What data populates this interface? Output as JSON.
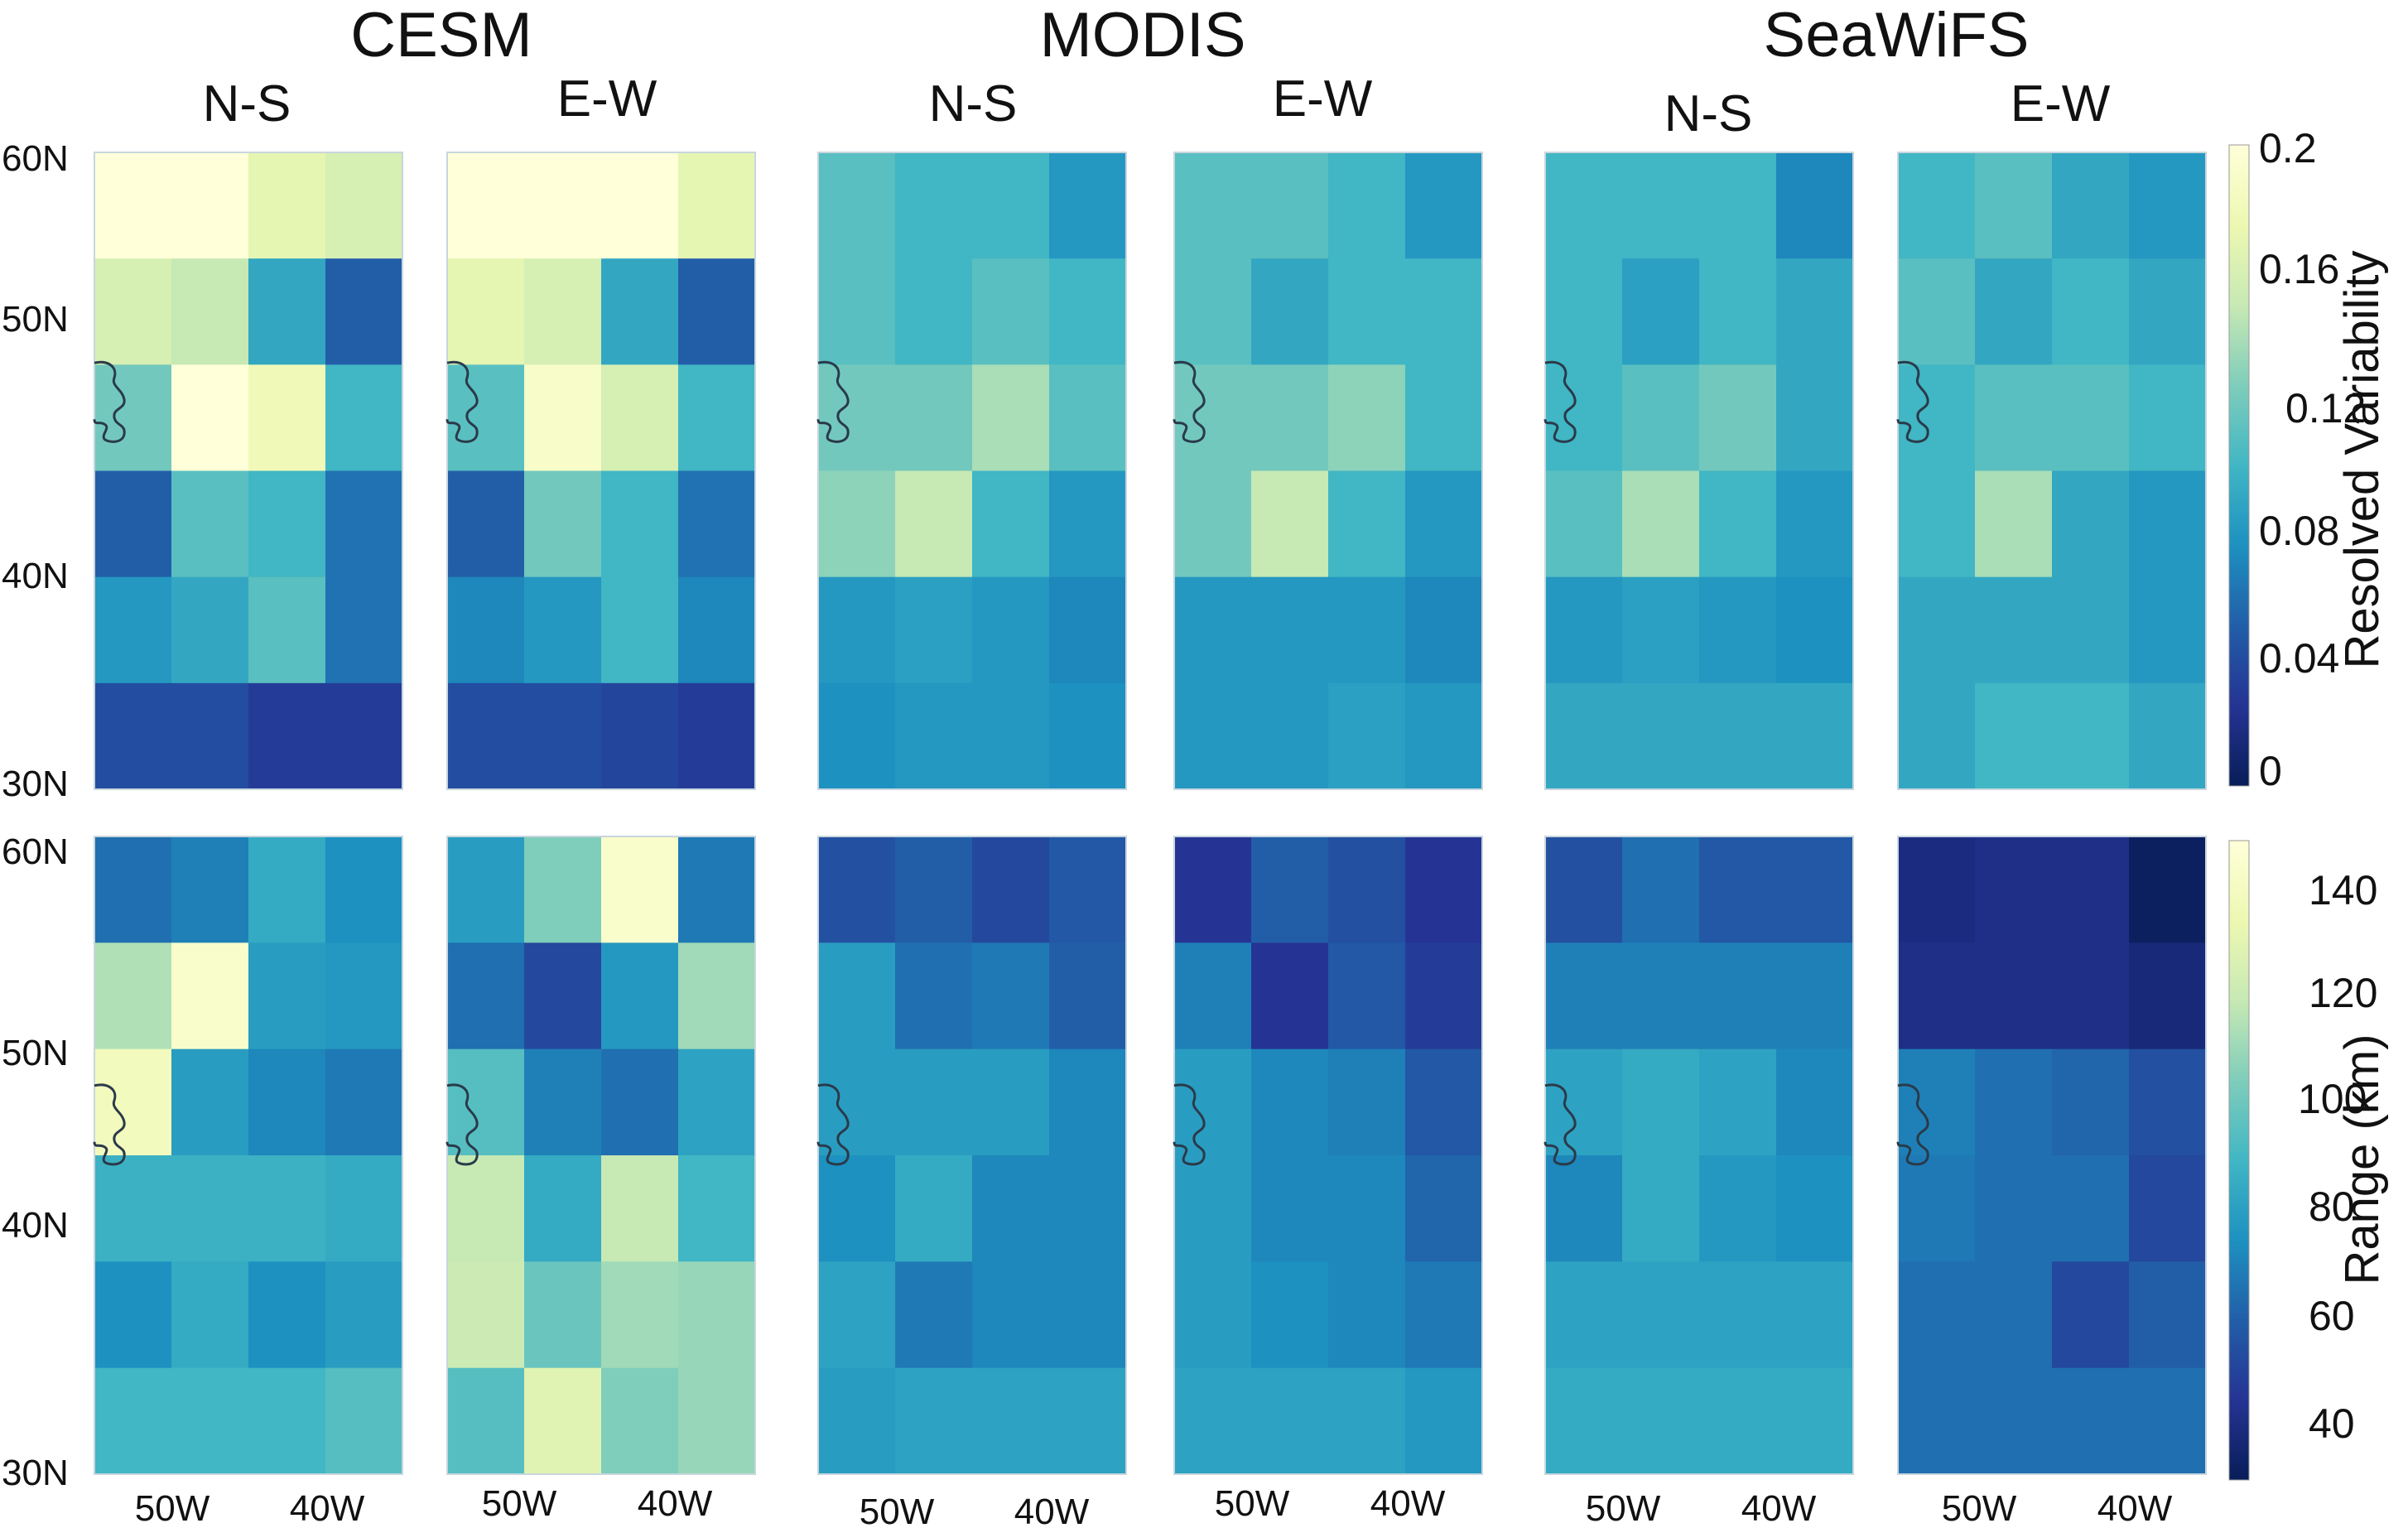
{
  "groups": [
    "CESM",
    "MODIS",
    "SeaWiFS"
  ],
  "subplot_titles": [
    "N-S",
    "E-W"
  ],
  "lat_ticks": [
    "60N",
    "50N",
    "40N",
    "30N"
  ],
  "lon_ticks": [
    "50W",
    "40W"
  ],
  "colorbars": [
    {
      "label": "Resolved Variability",
      "ticks": [
        "0.2",
        "0.16",
        "0.12",
        "0.08",
        "0.04",
        "0"
      ],
      "range": [
        0,
        0.2
      ]
    },
    {
      "label": "Range (km)",
      "ticks": [
        "140",
        "120",
        "100",
        "80",
        "60",
        "40"
      ],
      "range": [
        30,
        150
      ]
    }
  ],
  "chart_data": {
    "type": "heatmap",
    "description_rows": "6 latitude bands from north (60N-55N) to south (35N-30N); 4 longitude columns west to east (55W-35W)",
    "lat_range": [
      30,
      60
    ],
    "lon_range": [
      -55,
      -35
    ],
    "colormap": "YlGnBu",
    "rows": [
      {
        "variable": "Resolved Variability",
        "vmin": 0,
        "vmax": 0.2,
        "panels": [
          {
            "group": "CESM",
            "direction": "N-S",
            "grid": [
              [
                0.2,
                0.2,
                0.17,
                0.16
              ],
              [
                0.16,
                0.15,
                0.09,
                0.05
              ],
              [
                0.12,
                0.2,
                0.18,
                0.1
              ],
              [
                0.05,
                0.11,
                0.1,
                0.06
              ],
              [
                0.08,
                0.09,
                0.11,
                0.06
              ],
              [
                0.04,
                0.04,
                0.03,
                0.03
              ]
            ]
          },
          {
            "group": "CESM",
            "direction": "E-W",
            "grid": [
              [
                0.2,
                0.2,
                0.2,
                0.17
              ],
              [
                0.17,
                0.16,
                0.09,
                0.05
              ],
              [
                0.11,
                0.19,
                0.16,
                0.1
              ],
              [
                0.05,
                0.12,
                0.1,
                0.06
              ],
              [
                0.07,
                0.08,
                0.1,
                0.07
              ],
              [
                0.04,
                0.04,
                0.035,
                0.03
              ]
            ]
          },
          {
            "group": "MODIS",
            "direction": "N-S",
            "grid": [
              [
                0.11,
                0.1,
                0.1,
                0.08
              ],
              [
                0.11,
                0.1,
                0.11,
                0.1
              ],
              [
                0.12,
                0.12,
                0.14,
                0.11
              ],
              [
                0.13,
                0.15,
                0.1,
                0.08
              ],
              [
                0.08,
                0.085,
                0.08,
                0.07
              ],
              [
                0.075,
                0.08,
                0.08,
                0.075
              ]
            ]
          },
          {
            "group": "MODIS",
            "direction": "E-W",
            "grid": [
              [
                0.11,
                0.11,
                0.1,
                0.08
              ],
              [
                0.11,
                0.09,
                0.1,
                0.1
              ],
              [
                0.12,
                0.12,
                0.13,
                0.1
              ],
              [
                0.12,
                0.15,
                0.1,
                0.08
              ],
              [
                0.08,
                0.08,
                0.08,
                0.07
              ],
              [
                0.08,
                0.08,
                0.085,
                0.08
              ]
            ]
          },
          {
            "group": "SeaWiFS",
            "direction": "N-S",
            "grid": [
              [
                0.1,
                0.1,
                0.1,
                0.07
              ],
              [
                0.1,
                0.085,
                0.1,
                0.09
              ],
              [
                0.1,
                0.11,
                0.12,
                0.09
              ],
              [
                0.11,
                0.14,
                0.1,
                0.08
              ],
              [
                0.08,
                0.085,
                0.08,
                0.075
              ],
              [
                0.09,
                0.09,
                0.09,
                0.09
              ]
            ]
          },
          {
            "group": "SeaWiFS",
            "direction": "E-W",
            "grid": [
              [
                0.1,
                0.11,
                0.09,
                0.08
              ],
              [
                0.11,
                0.09,
                0.1,
                0.09
              ],
              [
                0.1,
                0.11,
                0.11,
                0.1
              ],
              [
                0.1,
                0.14,
                0.09,
                0.08
              ],
              [
                0.09,
                0.09,
                0.09,
                0.08
              ],
              [
                0.09,
                0.1,
                0.1,
                0.09
              ]
            ]
          }
        ]
      },
      {
        "variable": "Range (km)",
        "vmin": 30,
        "vmax": 150,
        "panels": [
          {
            "group": "CESM",
            "direction": "N-S",
            "grid": [
              [
                65,
                70,
                85,
                75
              ],
              [
                115,
                145,
                80,
                78
              ],
              [
                140,
                80,
                72,
                68
              ],
              [
                88,
                88,
                88,
                85
              ],
              [
                75,
                85,
                75,
                80
              ],
              [
                90,
                90,
                90,
                95
              ]
            ]
          },
          {
            "group": "CESM",
            "direction": "E-W",
            "grid": [
              [
                80,
                105,
                145,
                68
              ],
              [
                65,
                52,
                78,
                112
              ],
              [
                95,
                70,
                65,
                82
              ],
              [
                120,
                85,
                120,
                90
              ],
              [
                122,
                100,
                112,
                110
              ],
              [
                95,
                130,
                105,
                110
              ]
            ]
          },
          {
            "group": "MODIS",
            "direction": "N-S",
            "grid": [
              [
                55,
                60,
                52,
                58
              ],
              [
                80,
                65,
                68,
                60
              ],
              [
                80,
                80,
                80,
                72
              ],
              [
                75,
                85,
                72,
                72
              ],
              [
                82,
                68,
                72,
                72
              ],
              [
                80,
                82,
                82,
                82
              ]
            ]
          },
          {
            "group": "MODIS",
            "direction": "E-W",
            "grid": [
              [
                45,
                60,
                55,
                45
              ],
              [
                70,
                45,
                58,
                48
              ],
              [
                80,
                72,
                70,
                58
              ],
              [
                80,
                72,
                72,
                62
              ],
              [
                80,
                75,
                72,
                68
              ],
              [
                82,
                82,
                82,
                78
              ]
            ]
          },
          {
            "group": "SeaWiFS",
            "direction": "N-S",
            "grid": [
              [
                55,
                65,
                58,
                58
              ],
              [
                70,
                70,
                70,
                70
              ],
              [
                82,
                85,
                82,
                72
              ],
              [
                72,
                85,
                78,
                75
              ],
              [
                82,
                82,
                82,
                82
              ],
              [
                85,
                85,
                85,
                85
              ]
            ]
          },
          {
            "group": "SeaWiFS",
            "direction": "E-W",
            "grid": [
              [
                40,
                42,
                42,
                32
              ],
              [
                42,
                42,
                42,
                38
              ],
              [
                70,
                65,
                62,
                55
              ],
              [
                68,
                65,
                65,
                52
              ],
              [
                65,
                65,
                52,
                60
              ],
              [
                65,
                65,
                65,
                65
              ]
            ]
          }
        ]
      }
    ]
  }
}
